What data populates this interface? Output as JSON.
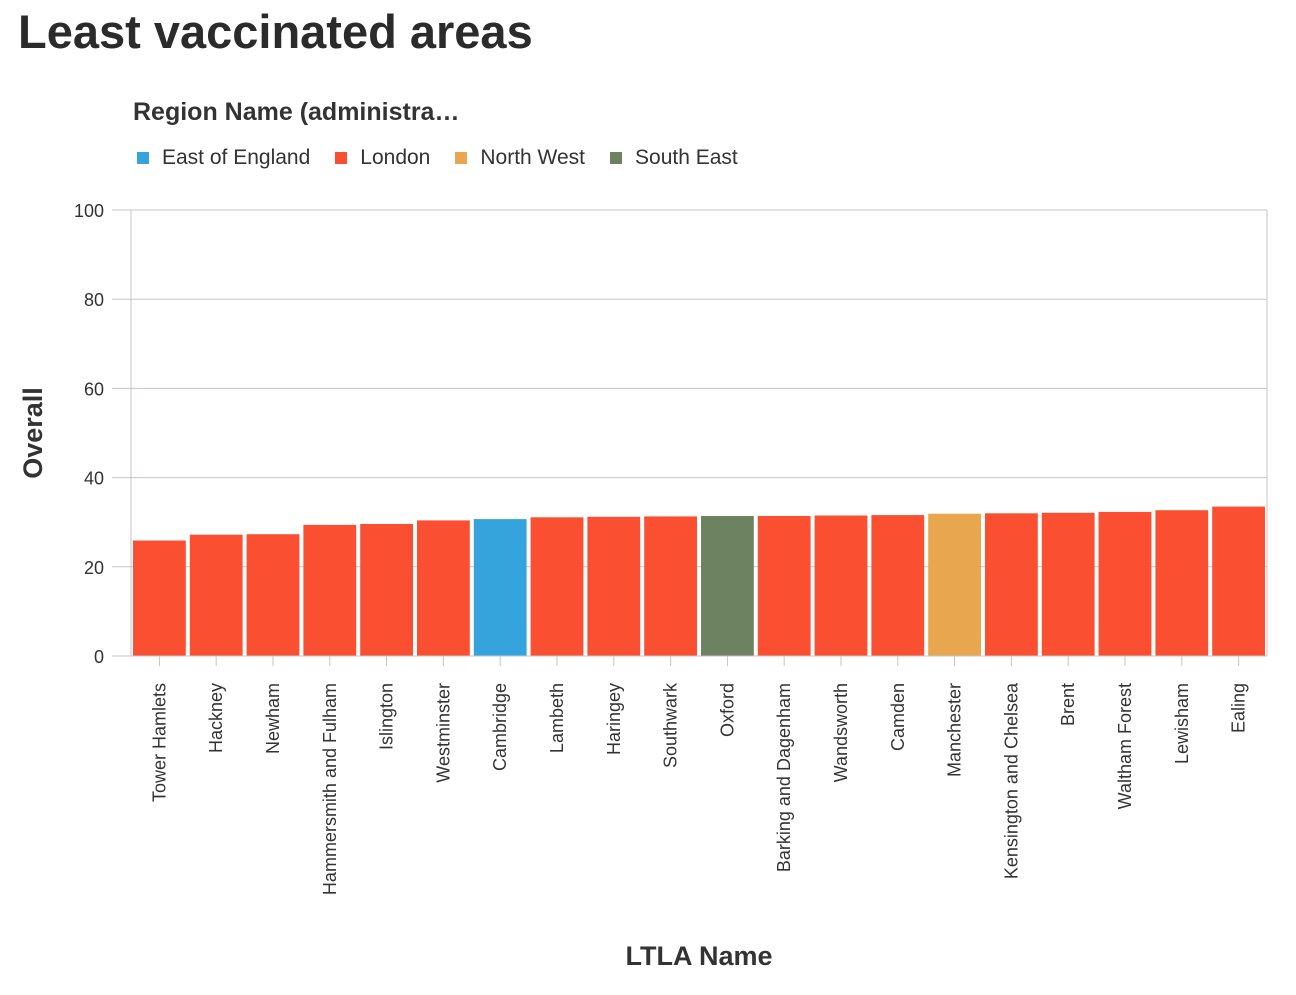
{
  "page": {
    "title": "Least vaccinated areas"
  },
  "legend": {
    "title": "Region Name (administra…",
    "items": [
      {
        "label": "East of England",
        "color": "#35a4dc"
      },
      {
        "label": "London",
        "color": "#fb4f32"
      },
      {
        "label": "North West",
        "color": "#e8a74f"
      },
      {
        "label": "South East",
        "color": "#6d8260"
      }
    ]
  },
  "chart_data": {
    "type": "bar",
    "title": "",
    "xlabel": "LTLA Name",
    "ylabel": "Overall",
    "ylim": [
      0,
      100
    ],
    "yticks": [
      0,
      20,
      40,
      60,
      80,
      100
    ],
    "grid": true,
    "categories": [
      "Tower Hamlets",
      "Hackney",
      "Newham",
      "Hammersmith and Fulham",
      "Islington",
      "Westminster",
      "Cambridge",
      "Lambeth",
      "Haringey",
      "Southwark",
      "Oxford",
      "Barking and Dagenham",
      "Wandsworth",
      "Camden",
      "Manchester",
      "Kensington and Chelsea",
      "Brent",
      "Waltham Forest",
      "Lewisham",
      "Ealing"
    ],
    "values": [
      25.9,
      27.2,
      27.3,
      29.4,
      29.6,
      30.4,
      30.7,
      31.1,
      31.2,
      31.3,
      31.4,
      31.4,
      31.5,
      31.6,
      31.9,
      32.0,
      32.1,
      32.3,
      32.7,
      33.5
    ],
    "regions": [
      "London",
      "London",
      "London",
      "London",
      "London",
      "London",
      "East of England",
      "London",
      "London",
      "London",
      "South East",
      "London",
      "London",
      "London",
      "North West",
      "London",
      "London",
      "London",
      "London",
      "London"
    ]
  }
}
